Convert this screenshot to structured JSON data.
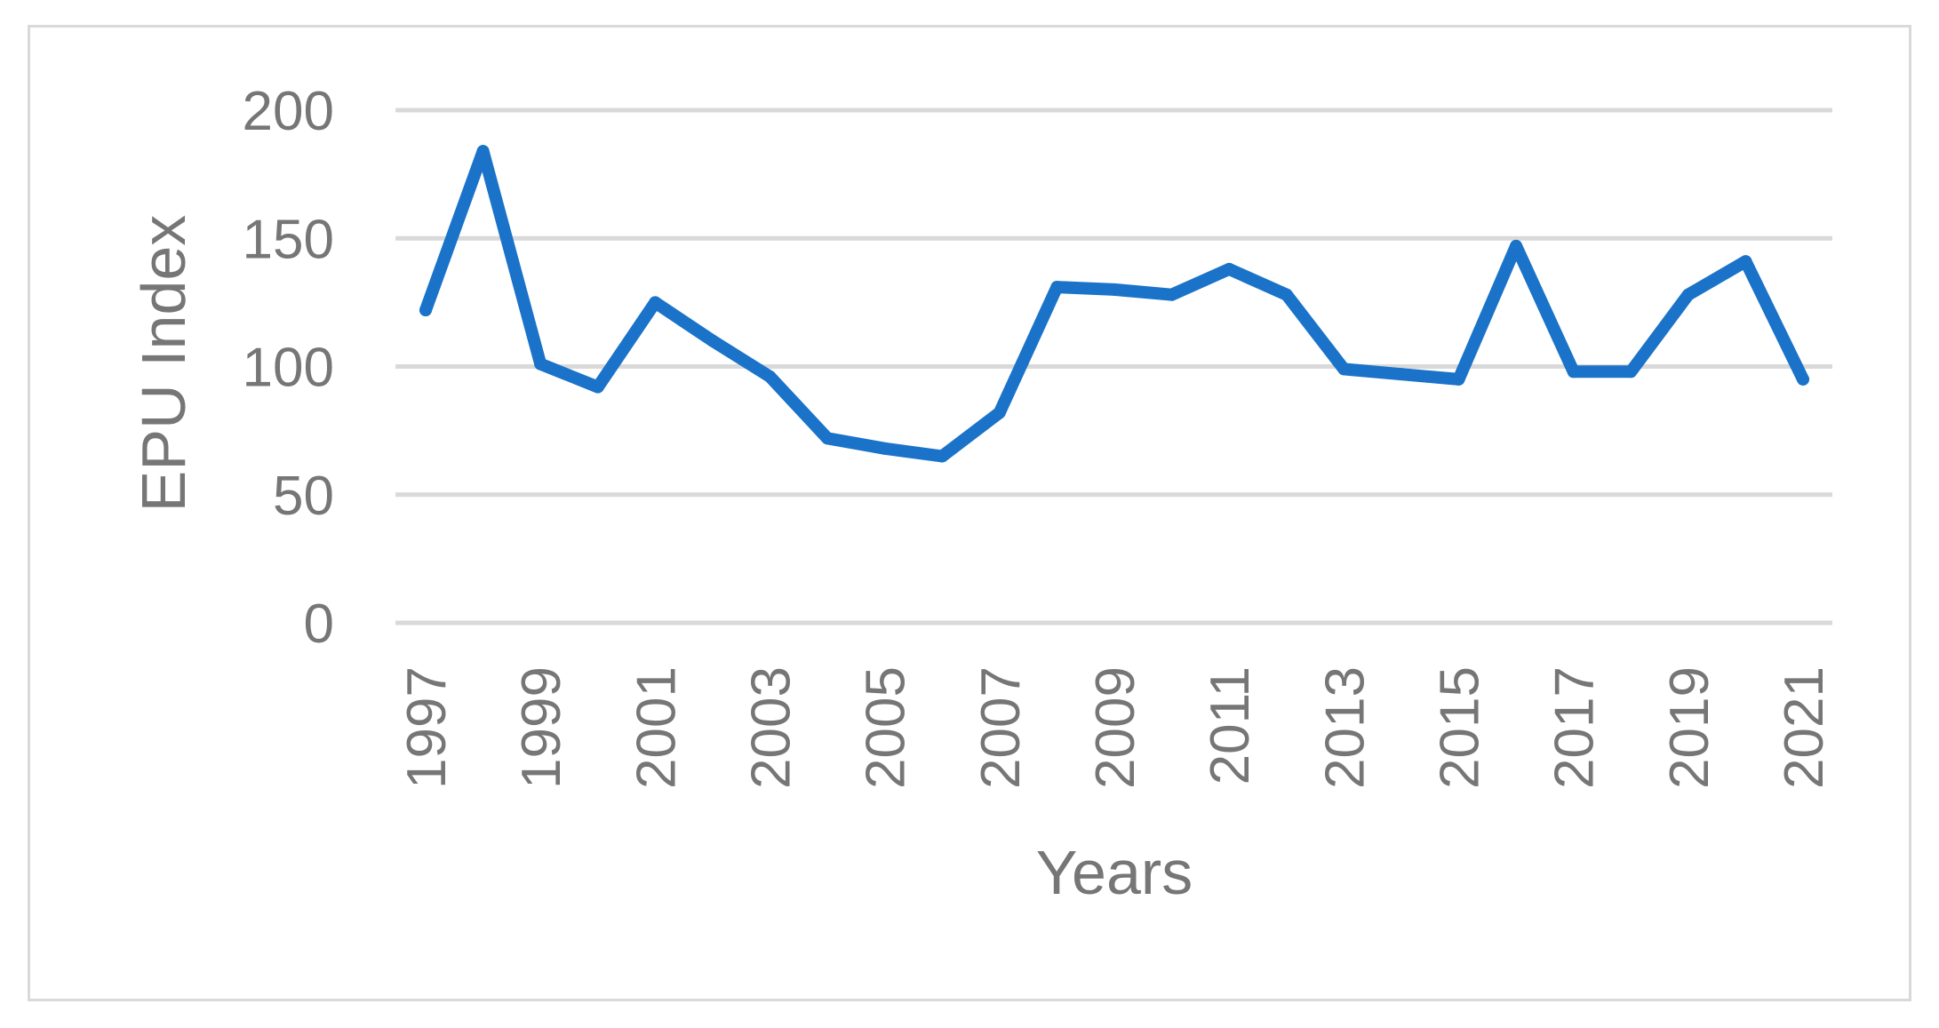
{
  "chart_data": {
    "type": "line",
    "title": "",
    "xlabel": "Years",
    "ylabel": "EPU Index",
    "ylim": [
      0,
      200
    ],
    "yticks": [
      0,
      50,
      100,
      150,
      200
    ],
    "grid": true,
    "legend": "none",
    "x": [
      1997,
      1998,
      1999,
      2000,
      2001,
      2002,
      2003,
      2004,
      2005,
      2006,
      2007,
      2008,
      2009,
      2010,
      2011,
      2012,
      2013,
      2014,
      2015,
      2016,
      2017,
      2018,
      2019,
      2020,
      2021
    ],
    "xtick_labels": [
      "1997",
      "1999",
      "2001",
      "2003",
      "2005",
      "2007",
      "2009",
      "2011",
      "2013",
      "2015",
      "2017",
      "2019",
      "2021"
    ],
    "series": [
      {
        "color": "#1a73c9",
        "values": [
          122,
          184,
          101,
          92,
          125,
          110,
          96,
          72,
          68,
          65,
          82,
          131,
          130,
          128,
          138,
          128,
          99,
          97,
          95,
          147,
          98,
          98,
          128,
          141,
          95
        ]
      }
    ],
    "colors": {
      "grid": "#d9d9d9",
      "text": "#767676",
      "line": "#1a73c9"
    }
  }
}
